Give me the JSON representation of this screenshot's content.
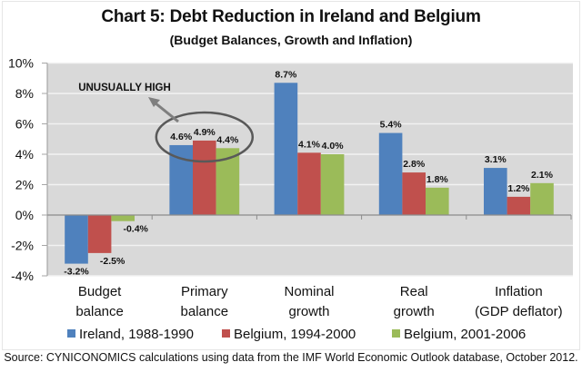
{
  "chart_data": {
    "type": "bar",
    "title": "Chart 5:  Debt Reduction in Ireland and Belgium",
    "subtitle": "(Budget Balances, Growth and Inflation)",
    "xlabel": "",
    "ylabel": "",
    "ylim": [
      -4,
      10
    ],
    "yticks": [
      -4,
      -2,
      0,
      2,
      4,
      6,
      8,
      10
    ],
    "ytick_labels": [
      "-4%",
      "-2%",
      "0%",
      "2%",
      "4%",
      "6%",
      "8%",
      "10%"
    ],
    "grid": true,
    "legend_position": "bottom",
    "categories": [
      [
        "Budget",
        "balance"
      ],
      [
        "Primary",
        "balance"
      ],
      [
        "Nominal",
        "growth"
      ],
      [
        "Real",
        "growth"
      ],
      [
        "Inflation",
        "(GDP deflator)"
      ]
    ],
    "series": [
      {
        "name": "Ireland, 1988-1990",
        "color": "#4F81BD",
        "values": [
          -3.2,
          4.6,
          8.7,
          5.4,
          3.1
        ],
        "labels": [
          "-3.2%",
          "4.6%",
          "8.7%",
          "5.4%",
          "3.1%"
        ]
      },
      {
        "name": "Belgium, 1994-2000",
        "color": "#C0504D",
        "values": [
          -2.5,
          4.9,
          4.1,
          2.8,
          1.2
        ],
        "labels": [
          "-2.5%",
          "4.9%",
          "4.1%",
          "2.8%",
          "1.2%"
        ]
      },
      {
        "name": "Belgium, 2001-2006",
        "color": "#9BBB59",
        "values": [
          -0.4,
          4.4,
          4.0,
          1.8,
          2.1
        ],
        "labels": [
          "-0.4%",
          "4.4%",
          "4.0%",
          "1.8%",
          "2.1%"
        ]
      }
    ],
    "annotations": [
      {
        "text": "UNUSUALLY HIGH",
        "target_category": "Primary balance",
        "shape": "ellipse-with-arrow"
      }
    ],
    "source": "Source: CYNICONOMICS calculations using data from the IMF World Economic Outlook database, October 2012."
  }
}
